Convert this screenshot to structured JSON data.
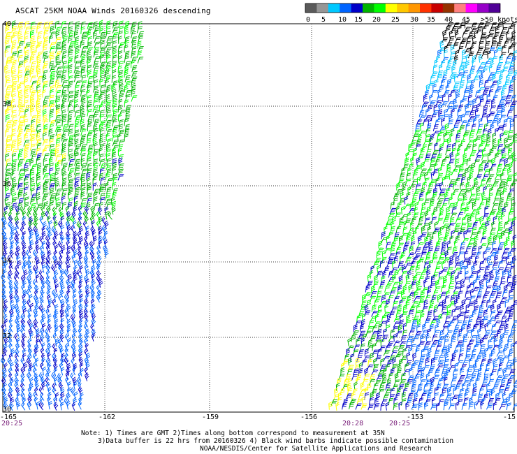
{
  "title": "ASCAT 25KM NOAA Winds 20160326 descending",
  "colorbar": {
    "labels": [
      "0",
      "5",
      "10",
      "15",
      "20",
      "25",
      "30",
      "35",
      "40",
      "45",
      ">50 knots"
    ],
    "colors": [
      "#5a5a5a",
      "#969696",
      "#00c8ff",
      "#0064ff",
      "#0000c8",
      "#00b400",
      "#00ff00",
      "#ffff00",
      "#ffc800",
      "#ff9600",
      "#ff3200",
      "#c80000",
      "#963200",
      "#ff8080",
      "#ff00ff",
      "#9600c8",
      "#500096"
    ]
  },
  "map": {
    "lon_ticks": [
      "-165",
      "-162",
      "-159",
      "-156",
      "-153",
      "-15"
    ],
    "lat_ticks": [
      "40",
      "38",
      "36",
      "34",
      "32",
      "30"
    ],
    "swath_times": [
      "20:25",
      "20:28",
      "20:25"
    ]
  },
  "wind_speed_colors": {
    "black_contaminated": "#000000",
    "cyan": "#00c8ff",
    "light_blue": "#0064ff",
    "dark_blue": "#0000c8",
    "dark_green": "#00b400",
    "bright_green": "#00ff00",
    "yellow": "#ffff00"
  },
  "notes": {
    "line1": "Note: 1) Times are GMT 2)Times along bottom correspond to measurement at 35N",
    "line2": "3)Data buffer is 22 hrs from 20160326 4) Black wind barbs indicate possible contamination",
    "line3": "NOAA/NESDIS/Center for Satellite Applications and Research"
  }
}
